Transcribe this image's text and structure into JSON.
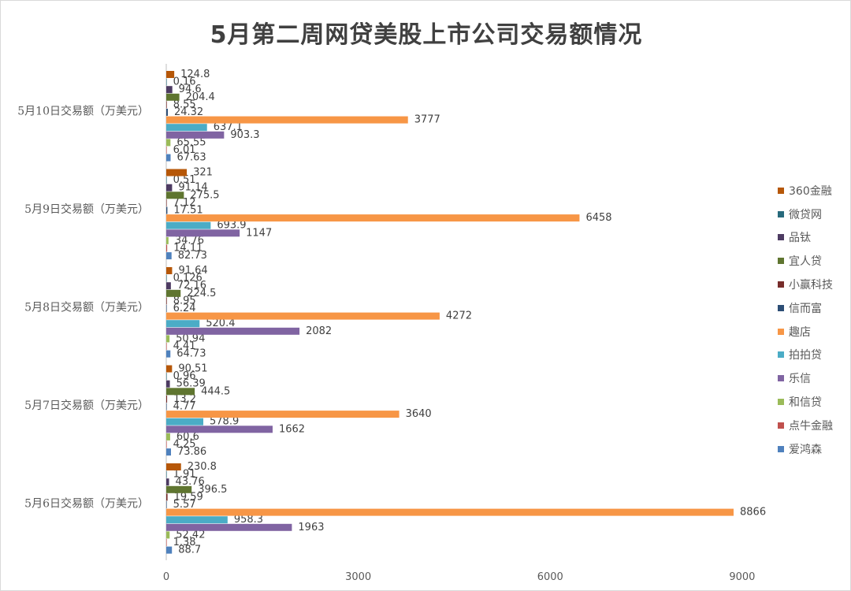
{
  "chart_data": {
    "type": "bar",
    "orientation": "horizontal",
    "title": "5月第二周网贷美股上市公司交易额情况",
    "xlim": [
      0,
      9000
    ],
    "x_ticks": [
      "0",
      "3000",
      "6000",
      "9000"
    ],
    "grid": false,
    "legend_position": "right",
    "categories": [
      "5月6日交易额（万美元）",
      "5月7日交易额（万美元）",
      "5月8日交易额（万美元）",
      "5月9日交易额（万美元）",
      "5月10日交易额（万美元）"
    ],
    "series": [
      {
        "name": "爱鸿森",
        "color": "#4f81bd",
        "values": [
          88.7,
          73.86,
          64.73,
          82.73,
          67.63
        ],
        "labels": [
          "88.7",
          "73.86",
          "64.73",
          "82.73",
          "67.63"
        ]
      },
      {
        "name": "点牛金融",
        "color": "#c0504d",
        "values": [
          1.38,
          4.25,
          4.41,
          14.11,
          6.01
        ],
        "labels": [
          "1.38",
          "4.25",
          "4.41",
          "14.11",
          "6.01"
        ]
      },
      {
        "name": "和信贷",
        "color": "#9bbb59",
        "values": [
          52.42,
          60.6,
          50.94,
          34.76,
          65.55
        ],
        "labels": [
          "52.42",
          "60.6",
          "50.94",
          "34.76",
          "65.55"
        ]
      },
      {
        "name": "乐信",
        "color": "#8064a2",
        "values": [
          1963,
          1662,
          2082,
          1147,
          903.3
        ],
        "labels": [
          "1963",
          "1662",
          "2082",
          "1147",
          "903.3"
        ]
      },
      {
        "name": "拍拍贷",
        "color": "#4bacc6",
        "values": [
          958.3,
          578.9,
          520.4,
          693.9,
          637.1
        ],
        "labels": [
          "958.3",
          "578.9",
          "520.4",
          "693.9",
          "637.1"
        ]
      },
      {
        "name": "趣店",
        "color": "#f79646",
        "values": [
          8866,
          3640,
          4272,
          6458,
          3777
        ],
        "labels": [
          "8866",
          "3640",
          "4272",
          "6458",
          "3777"
        ]
      },
      {
        "name": "信而富",
        "color": "#2c4d75",
        "values": [
          5.57,
          4.77,
          6.24,
          17.51,
          24.32
        ],
        "labels": [
          "5.57",
          "4.77",
          "6.24",
          "17.51",
          "24.32"
        ]
      },
      {
        "name": "小赢科技",
        "color": "#772c2a",
        "values": [
          19.59,
          13.2,
          8.95,
          7.12,
          8.55
        ],
        "labels": [
          "19.59",
          "13.2",
          "8.95",
          "7.12",
          "8.55"
        ]
      },
      {
        "name": "宜人贷",
        "color": "#5f7530",
        "values": [
          396.5,
          444.5,
          224.5,
          275.5,
          204.4
        ],
        "labels": [
          "396.5",
          "444.5",
          "224.5",
          "275.5",
          "204.4"
        ]
      },
      {
        "name": "品钛",
        "color": "#4d3b62",
        "values": [
          43.76,
          56.39,
          72.16,
          91.14,
          94.6
        ],
        "labels": [
          "43.76",
          "56.39",
          "72.16",
          "91.14",
          "94.6"
        ]
      },
      {
        "name": "微贷网",
        "color": "#276a7c",
        "values": [
          1.91,
          0.96,
          0.126,
          0.51,
          0.16
        ],
        "labels": [
          "1.91",
          "0.96",
          "0.126",
          "0.51",
          "0.16"
        ]
      },
      {
        "name": "360金融",
        "color": "#b65708",
        "values": [
          230.8,
          90.51,
          91.64,
          321,
          124.8
        ],
        "labels": [
          "230.8",
          "90.51",
          "91.64",
          "321",
          "124.8"
        ]
      }
    ]
  }
}
